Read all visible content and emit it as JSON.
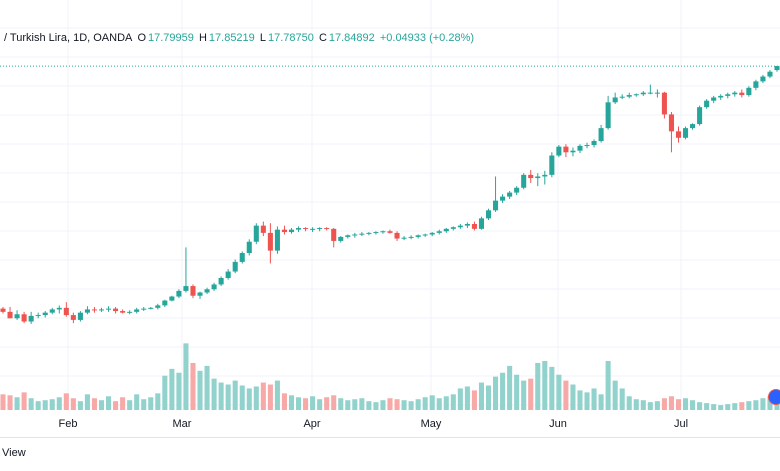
{
  "legend": {
    "title": "/ Turkish Lira, 1D, OANDA",
    "o_label": "O",
    "o_value": "17.79959",
    "h_label": "H",
    "h_value": "17.85219",
    "l_label": "L",
    "l_value": "17.78750",
    "c_label": "C",
    "c_value": "17.84892",
    "change": "+0.04933 (+0.28%)"
  },
  "bottom_bar": {
    "text": "View"
  },
  "colors": {
    "up": "#26a69a",
    "down": "#ef5350",
    "up_vol": "#92d2cc",
    "down_vol": "#f7a9a7",
    "grid": "#f0f3fa",
    "last_price_line": "#26a69a"
  },
  "chart_data": {
    "type": "candlestick",
    "x_axis_labels": [
      "Feb",
      "Mar",
      "Apr",
      "May",
      "Jun",
      "Jul"
    ],
    "price_range": [
      14.55,
      17.95
    ],
    "volume_range": [
      0,
      100
    ],
    "last_close": 17.84892,
    "candles": [
      [
        14.84,
        14.86,
        14.78,
        14.8,
        16
      ],
      [
        14.8,
        14.86,
        14.72,
        14.72,
        15
      ],
      [
        14.72,
        14.82,
        14.7,
        14.77,
        13
      ],
      [
        14.77,
        14.8,
        14.66,
        14.68,
        18
      ],
      [
        14.68,
        14.8,
        14.65,
        14.75,
        12
      ],
      [
        14.75,
        14.79,
        14.72,
        14.76,
        9
      ],
      [
        14.76,
        14.81,
        14.73,
        14.79,
        10
      ],
      [
        14.79,
        14.85,
        14.77,
        14.83,
        11
      ],
      [
        14.83,
        14.88,
        14.78,
        14.85,
        13
      ],
      [
        14.85,
        14.92,
        14.74,
        14.76,
        17
      ],
      [
        14.76,
        14.79,
        14.66,
        14.7,
        12
      ],
      [
        14.7,
        14.81,
        14.68,
        14.79,
        9
      ],
      [
        14.79,
        14.87,
        14.77,
        14.83,
        16
      ],
      [
        14.83,
        14.86,
        14.79,
        14.82,
        12
      ],
      [
        14.82,
        14.85,
        14.8,
        14.83,
        10
      ],
      [
        14.83,
        14.87,
        14.8,
        14.84,
        14
      ],
      [
        14.84,
        14.86,
        14.78,
        14.81,
        9
      ],
      [
        14.81,
        14.83,
        14.78,
        14.79,
        13
      ],
      [
        14.79,
        14.82,
        14.77,
        14.8,
        10
      ],
      [
        14.8,
        14.85,
        14.78,
        14.83,
        16
      ],
      [
        14.83,
        14.86,
        14.81,
        14.84,
        11
      ],
      [
        14.84,
        14.86,
        14.83,
        14.85,
        13
      ],
      [
        14.85,
        14.9,
        14.83,
        14.88,
        17
      ],
      [
        14.88,
        14.95,
        14.86,
        14.94,
        35
      ],
      [
        14.94,
        15.0,
        14.93,
        14.99,
        42
      ],
      [
        14.99,
        15.08,
        14.97,
        15.06,
        38
      ],
      [
        15.06,
        15.6,
        15.04,
        15.12,
        68
      ],
      [
        15.12,
        15.14,
        14.97,
        15.0,
        48
      ],
      [
        15.0,
        15.05,
        14.96,
        15.04,
        40
      ],
      [
        15.04,
        15.1,
        15.02,
        15.08,
        45
      ],
      [
        15.08,
        15.16,
        15.06,
        15.14,
        32
      ],
      [
        15.14,
        15.24,
        15.12,
        15.22,
        28
      ],
      [
        15.22,
        15.33,
        15.2,
        15.3,
        26
      ],
      [
        15.3,
        15.45,
        15.28,
        15.42,
        30
      ],
      [
        15.42,
        15.55,
        15.4,
        15.53,
        25
      ],
      [
        15.53,
        15.7,
        15.5,
        15.67,
        22
      ],
      [
        15.67,
        15.9,
        15.64,
        15.87,
        24
      ],
      [
        15.87,
        15.92,
        15.74,
        15.78,
        28
      ],
      [
        15.78,
        15.9,
        15.4,
        15.56,
        26
      ],
      [
        15.56,
        15.86,
        15.52,
        15.82,
        30
      ],
      [
        15.82,
        15.87,
        15.76,
        15.79,
        17
      ],
      [
        15.79,
        15.84,
        15.77,
        15.82,
        15
      ],
      [
        15.82,
        15.86,
        15.79,
        15.84,
        13
      ],
      [
        15.84,
        15.85,
        15.8,
        15.83,
        12
      ],
      [
        15.83,
        15.85,
        15.79,
        15.83,
        14
      ],
      [
        15.83,
        15.85,
        15.8,
        15.84,
        11
      ],
      [
        15.84,
        15.85,
        15.81,
        15.83,
        13
      ],
      [
        15.83,
        15.84,
        15.6,
        15.68,
        15
      ],
      [
        15.68,
        15.74,
        15.66,
        15.73,
        12
      ],
      [
        15.73,
        15.76,
        15.71,
        15.75,
        10
      ],
      [
        15.75,
        15.78,
        15.72,
        15.76,
        11
      ],
      [
        15.76,
        15.79,
        15.74,
        15.77,
        12
      ],
      [
        15.77,
        15.79,
        15.75,
        15.78,
        9
      ],
      [
        15.78,
        15.8,
        15.76,
        15.79,
        8
      ],
      [
        15.79,
        15.81,
        15.77,
        15.8,
        10
      ],
      [
        15.8,
        15.82,
        15.77,
        15.78,
        12
      ],
      [
        15.78,
        15.8,
        15.68,
        15.71,
        11
      ],
      [
        15.71,
        15.74,
        15.69,
        15.72,
        10
      ],
      [
        15.72,
        15.75,
        15.7,
        15.73,
        9
      ],
      [
        15.73,
        15.76,
        15.71,
        15.75,
        11
      ],
      [
        15.75,
        15.77,
        15.73,
        15.76,
        13
      ],
      [
        15.76,
        15.79,
        15.74,
        15.78,
        15
      ],
      [
        15.78,
        15.82,
        15.76,
        15.8,
        12
      ],
      [
        15.8,
        15.84,
        15.78,
        15.83,
        14
      ],
      [
        15.83,
        15.86,
        15.81,
        15.85,
        16
      ],
      [
        15.85,
        15.89,
        15.83,
        15.87,
        22
      ],
      [
        15.87,
        15.91,
        15.84,
        15.89,
        24
      ],
      [
        15.89,
        15.92,
        15.81,
        15.83,
        20
      ],
      [
        15.83,
        15.98,
        15.82,
        15.96,
        28
      ],
      [
        15.96,
        16.08,
        15.94,
        16.06,
        25
      ],
      [
        16.06,
        16.48,
        16.04,
        16.18,
        34
      ],
      [
        16.18,
        16.26,
        16.15,
        16.23,
        38
      ],
      [
        16.23,
        16.3,
        16.2,
        16.28,
        45
      ],
      [
        16.28,
        16.36,
        16.25,
        16.34,
        36
      ],
      [
        16.34,
        16.52,
        16.32,
        16.5,
        30
      ],
      [
        16.5,
        16.56,
        16.4,
        16.46,
        32
      ],
      [
        16.46,
        16.52,
        16.36,
        16.48,
        48
      ],
      [
        16.48,
        16.55,
        16.38,
        16.5,
        50
      ],
      [
        16.5,
        16.78,
        16.47,
        16.74,
        44
      ],
      [
        16.74,
        16.87,
        16.72,
        16.85,
        36
      ],
      [
        16.85,
        16.88,
        16.72,
        16.78,
        30
      ],
      [
        16.78,
        16.84,
        16.73,
        16.8,
        26
      ],
      [
        16.8,
        16.88,
        16.77,
        16.86,
        20
      ],
      [
        16.86,
        16.9,
        16.83,
        16.87,
        18
      ],
      [
        16.87,
        16.94,
        16.84,
        16.92,
        22
      ],
      [
        16.92,
        17.12,
        16.9,
        17.08,
        16
      ],
      [
        17.08,
        17.48,
        17.06,
        17.4,
        50
      ],
      [
        17.4,
        17.52,
        17.38,
        17.46,
        30
      ],
      [
        17.46,
        17.5,
        17.44,
        17.47,
        22
      ],
      [
        17.47,
        17.52,
        17.45,
        17.49,
        14
      ],
      [
        17.49,
        17.51,
        17.47,
        17.5,
        11
      ],
      [
        17.5,
        17.54,
        17.48,
        17.52,
        10
      ],
      [
        17.52,
        17.62,
        17.5,
        17.52,
        8
      ],
      [
        17.52,
        17.56,
        17.46,
        17.52,
        9
      ],
      [
        17.52,
        17.53,
        17.2,
        17.25,
        12
      ],
      [
        17.25,
        17.28,
        16.78,
        17.04,
        14
      ],
      [
        17.04,
        17.1,
        16.9,
        16.96,
        11
      ],
      [
        16.96,
        17.1,
        16.94,
        17.08,
        12
      ],
      [
        17.08,
        17.14,
        17.06,
        17.13,
        10
      ],
      [
        17.13,
        17.36,
        17.11,
        17.34,
        8
      ],
      [
        17.34,
        17.44,
        17.32,
        17.42,
        7
      ],
      [
        17.42,
        17.48,
        17.39,
        17.46,
        6
      ],
      [
        17.46,
        17.5,
        17.43,
        17.48,
        5
      ],
      [
        17.48,
        17.52,
        17.45,
        17.5,
        6
      ],
      [
        17.5,
        17.54,
        17.47,
        17.52,
        7
      ],
      [
        17.52,
        17.56,
        17.46,
        17.49,
        8
      ],
      [
        17.49,
        17.6,
        17.47,
        17.58,
        9
      ],
      [
        17.58,
        17.68,
        17.55,
        17.66,
        10
      ],
      [
        17.66,
        17.74,
        17.64,
        17.72,
        12
      ],
      [
        17.72,
        17.8,
        17.7,
        17.78,
        14
      ],
      [
        17.8,
        17.85,
        17.78,
        17.85,
        18
      ]
    ]
  }
}
